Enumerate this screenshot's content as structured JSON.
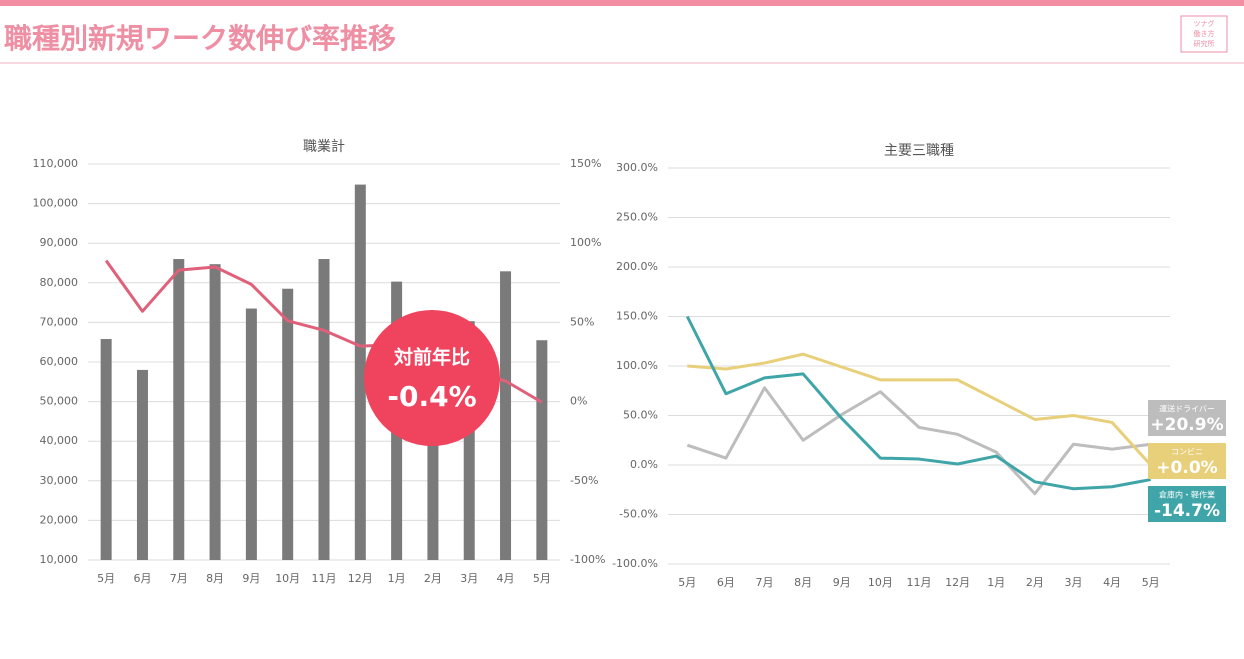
{
  "header": {
    "title": "職種別新規ワーク数伸び率推移",
    "logo": [
      "ツナグ",
      "働き方",
      "研究所"
    ]
  },
  "chart_data": [
    {
      "type": "bar_line",
      "title": "職業計",
      "categories": [
        "5月",
        "6月",
        "7月",
        "8月",
        "9月",
        "10月",
        "11月",
        "12月",
        "1月",
        "2月",
        "3月",
        "4月",
        "5月"
      ],
      "series": [
        {
          "type": "bar",
          "color": "#7a7a7a",
          "values": [
            65800,
            58000,
            86000,
            84700,
            73500,
            78500,
            86000,
            104800,
            80300,
            52000,
            70300,
            82900,
            65500
          ]
        },
        {
          "type": "line",
          "axis": "y2",
          "color": "#e0607a",
          "values": [
            89,
            57,
            83,
            85,
            74,
            51,
            45,
            35,
            36,
            29,
            20,
            13,
            -0.4
          ]
        }
      ],
      "ylim": [
        10000,
        110000
      ],
      "yticks": [
        {
          "value": 10000,
          "label": "10,000"
        },
        {
          "value": 20000,
          "label": "20,000"
        },
        {
          "value": 30000,
          "label": "30,000"
        },
        {
          "value": 40000,
          "label": "40,000"
        },
        {
          "value": 50000,
          "label": "50,000"
        },
        {
          "value": 60000,
          "label": "60,000"
        },
        {
          "value": 70000,
          "label": "70,000"
        },
        {
          "value": 80000,
          "label": "80,000"
        },
        {
          "value": 90000,
          "label": "90,000"
        },
        {
          "value": 100000,
          "label": "100,000"
        },
        {
          "value": 110000,
          "label": "110,000"
        }
      ],
      "y2lim": [
        -100,
        150
      ],
      "y2ticks": [
        {
          "value": -100,
          "label": "-100%"
        },
        {
          "value": -50,
          "label": "-50%"
        },
        {
          "value": 0,
          "label": "0%"
        },
        {
          "value": 50,
          "label": "50%"
        },
        {
          "value": 100,
          "label": "100%"
        },
        {
          "value": 150,
          "label": "150%"
        }
      ],
      "grid": true,
      "annotation": [
        "対前年比",
        "-0.4%"
      ]
    },
    {
      "type": "line",
      "title": "主要三職種",
      "categories": [
        "5月",
        "6月",
        "7月",
        "8月",
        "9月",
        "10月",
        "11月",
        "12月",
        "1月",
        "2月",
        "3月",
        "4月",
        "5月"
      ],
      "series": [
        {
          "name": "運送ドライバー",
          "color": "#bdbdbd",
          "values": [
            20,
            7,
            78,
            25,
            51,
            74,
            38,
            31,
            13,
            -29,
            21,
            16,
            20.9
          ],
          "end_label": "+20.9%"
        },
        {
          "name": "コンビニ",
          "color": "#e8cf7a",
          "values": [
            100,
            97,
            103,
            112,
            99,
            86,
            86,
            86,
            66,
            46,
            50,
            43,
            0
          ],
          "end_label": "+0.0%"
        },
        {
          "name": "倉庫内・軽作業",
          "color": "#3fa5a8",
          "values": [
            150,
            72,
            88,
            92,
            47,
            7,
            6,
            1,
            9,
            -17,
            -24,
            -22,
            -14.7
          ],
          "end_label": "-14.7%"
        }
      ],
      "ylim": [
        -100,
        300
      ],
      "yticks": [
        {
          "value": -100,
          "label": "-100.0%"
        },
        {
          "value": -50,
          "label": "-50.0%"
        },
        {
          "value": 0,
          "label": "0.0%"
        },
        {
          "value": 50,
          "label": "50.0%"
        },
        {
          "value": 100,
          "label": "100.0%"
        },
        {
          "value": 150,
          "label": "150.0%"
        },
        {
          "value": 200,
          "label": "200.0%"
        },
        {
          "value": 250,
          "label": "250.0%"
        },
        {
          "value": 300,
          "label": "300.0%"
        }
      ],
      "grid": true
    }
  ]
}
